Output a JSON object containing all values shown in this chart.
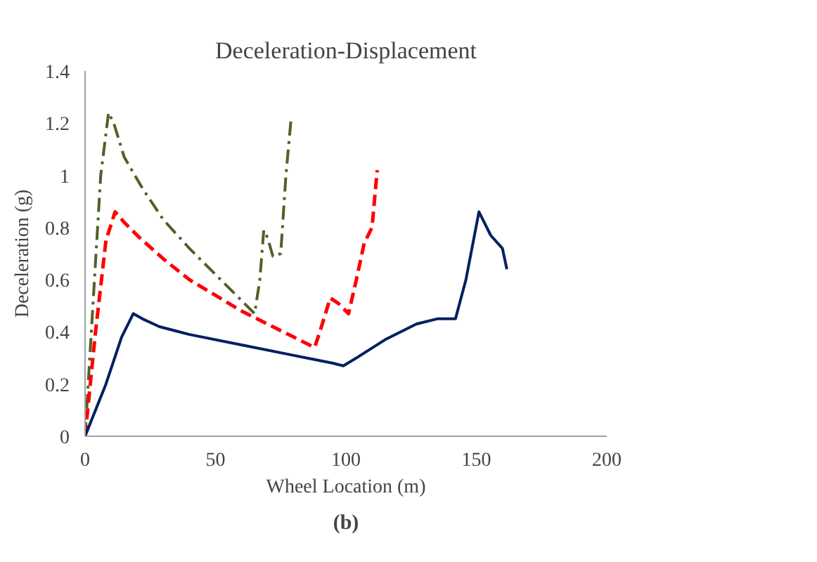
{
  "chart_data": {
    "type": "line",
    "title": "Deceleration-Displacement",
    "xlabel": "Wheel Location (m)",
    "ylabel": "Deceleration (g)",
    "xlim": [
      0,
      200
    ],
    "xticks": [
      0,
      50,
      100,
      150,
      200
    ],
    "ylim": [
      0,
      1.4
    ],
    "yticks": [
      0,
      0.2,
      0.4,
      0.6,
      0.8,
      1,
      1.2,
      1.4
    ],
    "grid": false,
    "annotations": [
      "(b)"
    ],
    "series": [
      {
        "color": "#4f6228",
        "line_style": "dashdot",
        "x": [
          0,
          3,
          6,
          9,
          11,
          15,
          22,
          30,
          40,
          50,
          58,
          65,
          67,
          68.5,
          70,
          72,
          75,
          77,
          79
        ],
        "values": [
          0,
          0.5,
          1.0,
          1.24,
          1.2,
          1.07,
          0.95,
          0.83,
          0.72,
          0.62,
          0.54,
          0.47,
          0.6,
          0.79,
          0.76,
          0.69,
          0.7,
          1.0,
          1.22
        ]
      },
      {
        "color": "#ff0000",
        "line_style": "dashed",
        "x": [
          0,
          4,
          8,
          11.5,
          15,
          21,
          30,
          40,
          50,
          60,
          70,
          80,
          88,
          90,
          94,
          97,
          101,
          104,
          107,
          110,
          112
        ],
        "values": [
          0,
          0.4,
          0.75,
          0.86,
          0.82,
          0.76,
          0.68,
          0.6,
          0.54,
          0.48,
          0.43,
          0.38,
          0.34,
          0.4,
          0.53,
          0.51,
          0.47,
          0.6,
          0.74,
          0.8,
          1.02
        ]
      },
      {
        "color": "#002060",
        "line_style": "solid",
        "x": [
          0,
          8,
          14,
          18.5,
          22,
          28.5,
          40,
          60,
          80,
          95,
          99,
          104,
          115,
          127,
          135,
          142,
          146,
          151,
          153,
          155.5,
          160,
          161.7
        ],
        "values": [
          0,
          0.2,
          0.38,
          0.47,
          0.45,
          0.42,
          0.39,
          0.35,
          0.31,
          0.28,
          0.27,
          0.3,
          0.37,
          0.43,
          0.45,
          0.45,
          0.6,
          0.86,
          0.82,
          0.77,
          0.72,
          0.64
        ]
      }
    ]
  }
}
